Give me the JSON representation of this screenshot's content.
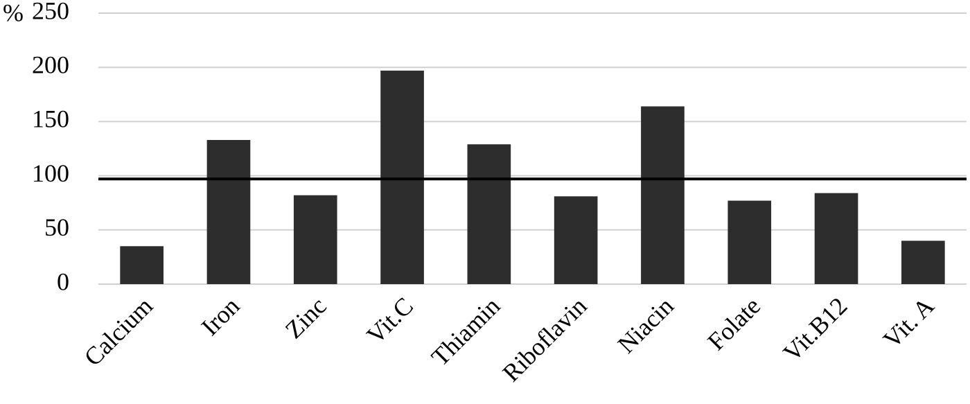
{
  "chart_data": {
    "type": "bar",
    "y_label": "%",
    "categories": [
      "Calcium",
      "Iron",
      "Zinc",
      "Vit.C",
      "Thiamin",
      "Riboflavin",
      "Niacin",
      "Folate",
      "Vit.B12",
      "Vit. A"
    ],
    "values": [
      35,
      133,
      82,
      197,
      129,
      81,
      164,
      77,
      84,
      40
    ],
    "color": "#2d2d2d",
    "ylim": [
      0,
      250
    ],
    "yticks": [
      0,
      50,
      100,
      150,
      200,
      250
    ],
    "grid": true,
    "reference_line": 97
  }
}
